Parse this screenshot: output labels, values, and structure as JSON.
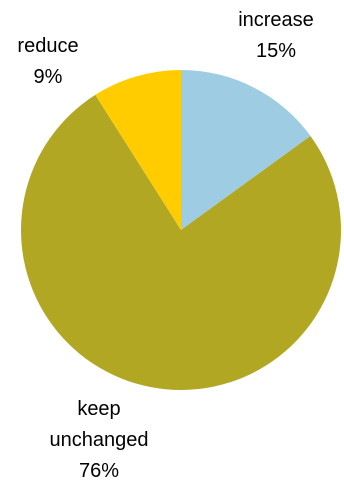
{
  "chart_data": {
    "type": "pie",
    "slices": [
      {
        "label": "increase",
        "value": 15,
        "value_label": "15%",
        "color": "#9ECDE3"
      },
      {
        "label": "keep unchanged",
        "value": 76,
        "value_label": "76%",
        "color": "#B1A723"
      },
      {
        "label": "reduce",
        "value": 9,
        "value_label": "9%",
        "color": "#FFCC00"
      }
    ],
    "start_angle_deg": 0,
    "direction": "clockwise",
    "legend": "none"
  }
}
